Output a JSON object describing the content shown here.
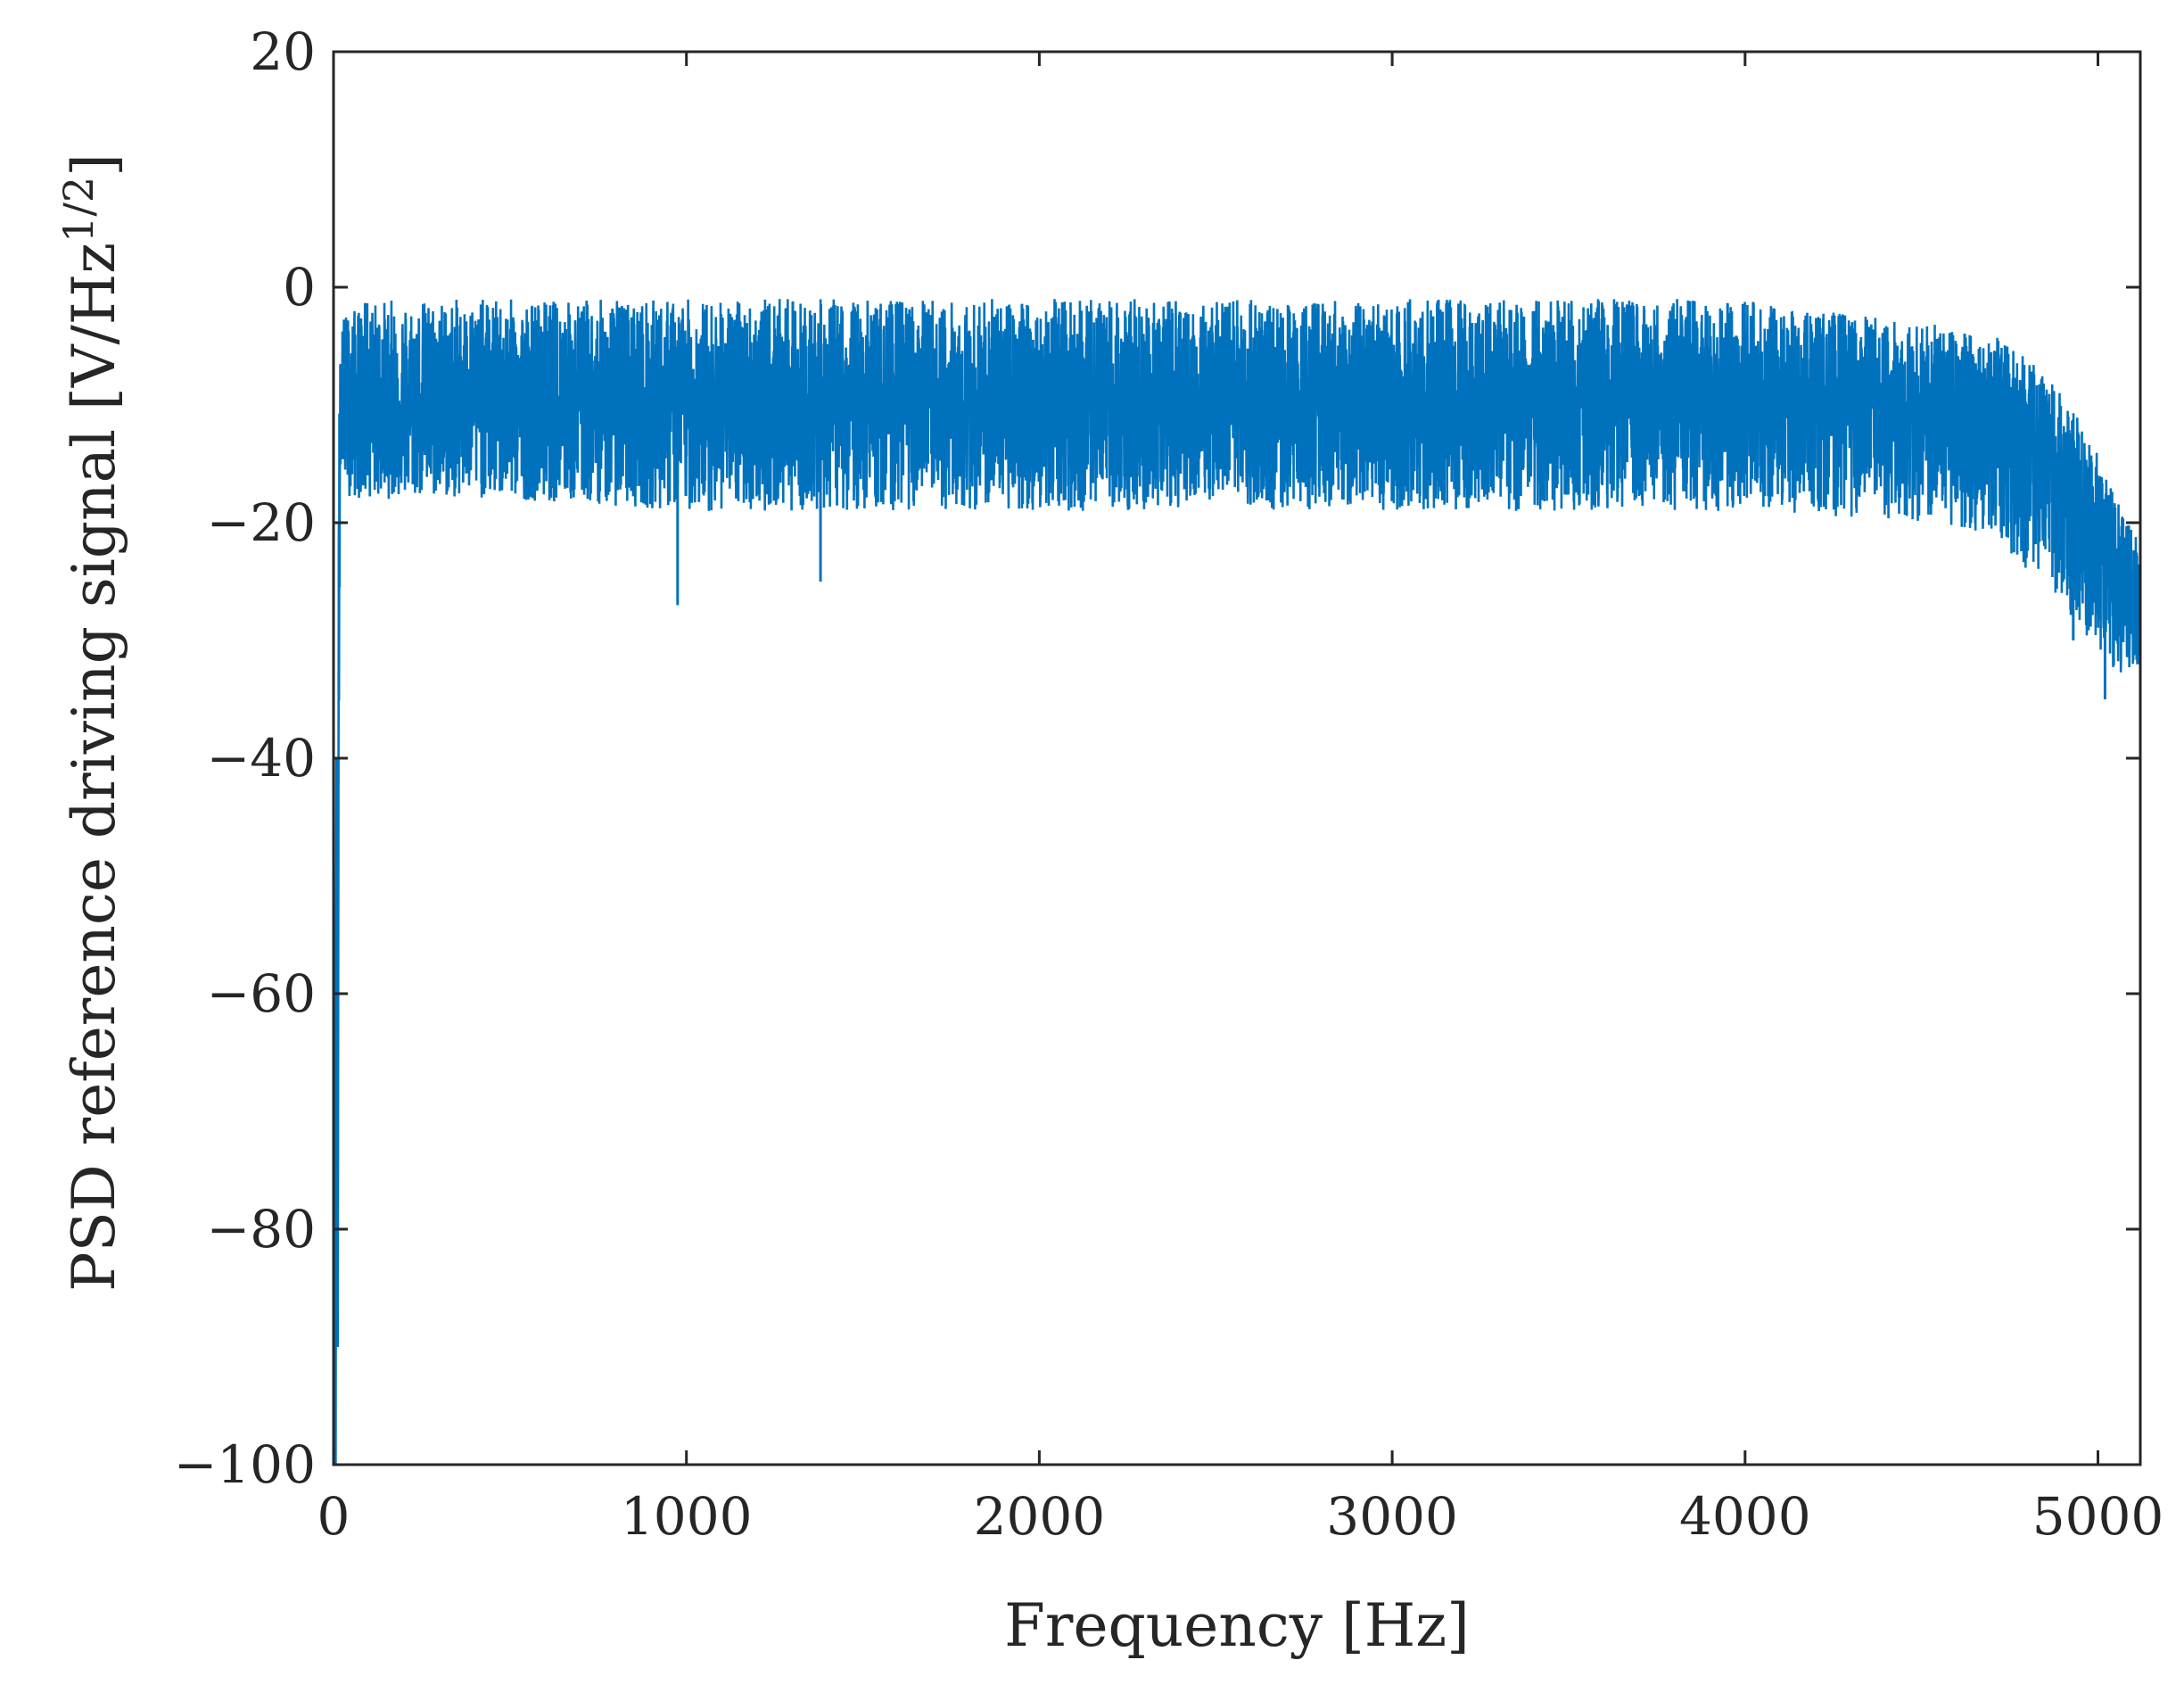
{
  "chart_data": {
    "type": "line",
    "xlabel": "Frequency [Hz]",
    "ylabel_main": "PSD reference driving signal [V/Hz",
    "ylabel_sup": "1/2",
    "ylabel_end": "]",
    "xlim": [
      0,
      5120
    ],
    "ylim": [
      -100,
      20
    ],
    "xticks": [
      0,
      1000,
      2000,
      3000,
      4000,
      5000
    ],
    "xtick_labels": [
      "0",
      "1000",
      "2000",
      "3000",
      "4000",
      "5000"
    ],
    "yticks": [
      -100,
      -80,
      -60,
      -40,
      -20,
      0,
      20
    ],
    "ytick_labels": [
      "−100",
      "−80",
      "−60",
      "−40",
      "−20",
      "0",
      "20"
    ],
    "grid": false,
    "box": true,
    "series": [
      {
        "color": "#0072BD",
        "description_points": {
          "x": [
            0,
            2,
            5,
            10,
            20,
            30,
            50,
            100,
            500,
            1000,
            1500,
            2000,
            2500,
            3000,
            3500,
            4000,
            4500,
            4700,
            4800,
            4900,
            5000,
            5050,
            5100,
            5120
          ],
          "mean": [
            -14,
            -100,
            -70,
            -40,
            -8,
            -10,
            -10,
            -10,
            -10,
            -10,
            -10,
            -10,
            -10,
            -10,
            -10,
            -10,
            -10,
            -11,
            -13,
            -16,
            -21,
            -24,
            -26,
            -27
          ],
          "upper": [
            -14,
            -100,
            -60,
            -20,
            -3,
            -2,
            -2,
            -1,
            -1,
            -1,
            -1,
            -1,
            -1,
            -1,
            -1,
            -1,
            -3,
            -4,
            -6,
            -9,
            -14,
            -18,
            -20,
            -21
          ],
          "lower": [
            -14,
            -100,
            -95,
            -60,
            -15,
            -17,
            -18,
            -18,
            -18,
            -19,
            -19,
            -19,
            -19,
            -19,
            -19,
            -19,
            -20,
            -21,
            -24,
            -27,
            -31,
            -33,
            -33,
            -33
          ]
        },
        "notable_min_spikes": [
          {
            "x": 975,
            "y": -27
          },
          {
            "x": 1380,
            "y": -25
          },
          {
            "x": 4930,
            "y": -30
          },
          {
            "x": 5020,
            "y": -35
          }
        ]
      }
    ]
  }
}
